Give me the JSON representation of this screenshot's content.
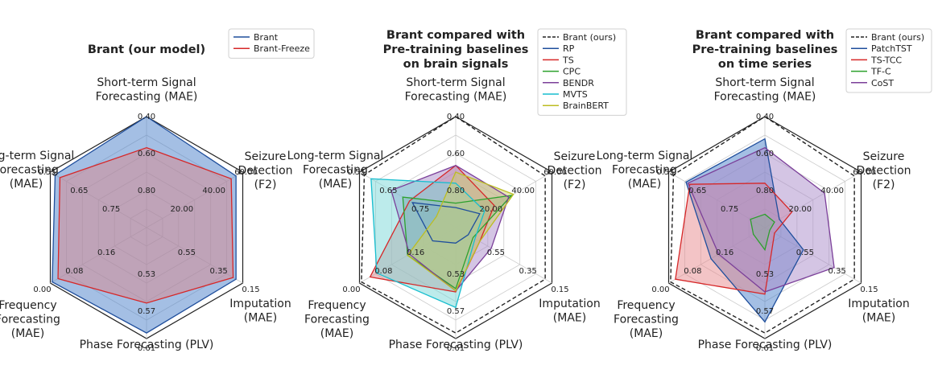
{
  "axis_labels": [
    [
      "Short-term Signal",
      "Forecasting (MAE)"
    ],
    [
      "Seizure",
      "Detection",
      "(F2)"
    ],
    [
      "Imputation",
      "(MAE)"
    ],
    [
      "Phase Forecasting (PLV)"
    ],
    [
      "Frequency",
      "Forecasting",
      "(MAE)"
    ],
    [
      "Long-term Signal",
      "Forecasting",
      "(MAE)"
    ]
  ],
  "axis_ticks": [
    [
      "0.80",
      "0.60",
      "0.40"
    ],
    [
      "20.00",
      "40.00",
      "60.00"
    ],
    [
      "0.55",
      "0.35",
      "0.15"
    ],
    [
      "0.53",
      "0.57",
      "0.61"
    ],
    [
      "0.16",
      "0.08",
      "0.00"
    ],
    [
      "0.75",
      "0.65",
      "0.55"
    ]
  ],
  "chart_data": [
    {
      "type": "radar",
      "title": [
        "Brant (our model)"
      ],
      "axes": [
        "Short-term Signal Forecasting (MAE)",
        "Seizure Detection (F2)",
        "Imputation (MAE)",
        "Phase Forecasting (PLV)",
        "Frequency Forecasting (MAE)",
        "Long-term Signal Forecasting (MAE)"
      ],
      "rlim": [
        0,
        1
      ],
      "legend_position": "top-right",
      "series": [
        {
          "name": "Brant",
          "color": "#1f4e9c",
          "fill": "#4a7fc9",
          "style": "solid",
          "values": [
            1.0,
            0.93,
            0.93,
            0.95,
            0.98,
            0.95
          ]
        },
        {
          "name": "Brant-Freeze",
          "color": "#d62728",
          "fill": "#d9888c",
          "style": "solid",
          "values": [
            0.72,
            0.88,
            0.9,
            0.68,
            0.92,
            0.9
          ]
        }
      ]
    },
    {
      "type": "radar",
      "title": [
        "Brant compared with",
        "Pre-training baselines",
        "on brain signals"
      ],
      "axes": [
        "Short-term Signal Forecasting (MAE)",
        "Seizure Detection (F2)",
        "Imputation (MAE)",
        "Phase Forecasting (PLV)",
        "Frequency Forecasting (MAE)",
        "Long-term Signal Forecasting (MAE)"
      ],
      "rlim": [
        0,
        1
      ],
      "legend_position": "top-right",
      "series": [
        {
          "name": "Brant (ours)",
          "color": "#222222",
          "fill": "none",
          "style": "dashed",
          "values": [
            1.0,
            0.93,
            0.93,
            0.95,
            0.98,
            0.95
          ]
        },
        {
          "name": "RP",
          "color": "#1f4e9c",
          "fill": "#4a7fc9",
          "style": "solid",
          "values": [
            0.18,
            0.25,
            0.13,
            0.14,
            0.24,
            0.45
          ]
        },
        {
          "name": "TS",
          "color": "#d62728",
          "fill": "#d9888c",
          "style": "solid",
          "values": [
            0.56,
            0.4,
            0.25,
            0.58,
            0.89,
            0.48
          ]
        },
        {
          "name": "CPC",
          "color": "#2ca02c",
          "fill": "#6fbf6f",
          "style": "solid",
          "values": [
            0.22,
            0.58,
            0.18,
            0.55,
            0.5,
            0.55
          ]
        },
        {
          "name": "BENDR",
          "color": "#7b3f99",
          "fill": "#a98cc9",
          "style": "solid",
          "values": [
            0.56,
            0.55,
            0.37,
            0.57,
            0.48,
            0.67
          ]
        },
        {
          "name": "MVTS",
          "color": "#17becf",
          "fill": "#7ad8d8",
          "style": "solid",
          "values": [
            0.4,
            0.3,
            0.2,
            0.72,
            0.82,
            0.88
          ]
        },
        {
          "name": "BrainBERT",
          "color": "#bcbd22",
          "fill": "#cfcf6a",
          "style": "solid",
          "values": [
            0.5,
            0.6,
            0.25,
            0.57,
            0.5,
            0.2
          ]
        }
      ]
    },
    {
      "type": "radar",
      "title": [
        "Brant compared with",
        "Pre-training baselines",
        "on time series"
      ],
      "axes": [
        "Short-term Signal Forecasting (MAE)",
        "Seizure Detection (F2)",
        "Imputation (MAE)",
        "Phase Forecasting (PLV)",
        "Frequency Forecasting (MAE)",
        "Long-term Signal Forecasting (MAE)"
      ],
      "rlim": [
        0,
        1
      ],
      "legend_position": "top-right",
      "series": [
        {
          "name": "Brant (ours)",
          "color": "#222222",
          "fill": "none",
          "style": "dashed",
          "values": [
            1.0,
            0.93,
            0.93,
            0.95,
            0.98,
            0.95
          ]
        },
        {
          "name": "PatchTST",
          "color": "#1f4e9c",
          "fill": "#4a7fc9",
          "style": "solid",
          "values": [
            0.8,
            0.15,
            0.4,
            0.85,
            0.56,
            0.82
          ]
        },
        {
          "name": "TS-TCC",
          "color": "#d62728",
          "fill": "#e88a8e",
          "style": "solid",
          "values": [
            0.4,
            0.28,
            0.1,
            0.6,
            0.93,
            0.78
          ]
        },
        {
          "name": "TF-C",
          "color": "#2ca02c",
          "fill": "#6fbf6f",
          "style": "solid",
          "values": [
            0.12,
            0.1,
            0.05,
            0.2,
            0.12,
            0.15
          ]
        },
        {
          "name": "CoST",
          "color": "#7b3f99",
          "fill": "#a98cc9",
          "style": "solid",
          "values": [
            0.72,
            0.62,
            0.72,
            0.58,
            0.48,
            0.8
          ]
        }
      ]
    }
  ]
}
